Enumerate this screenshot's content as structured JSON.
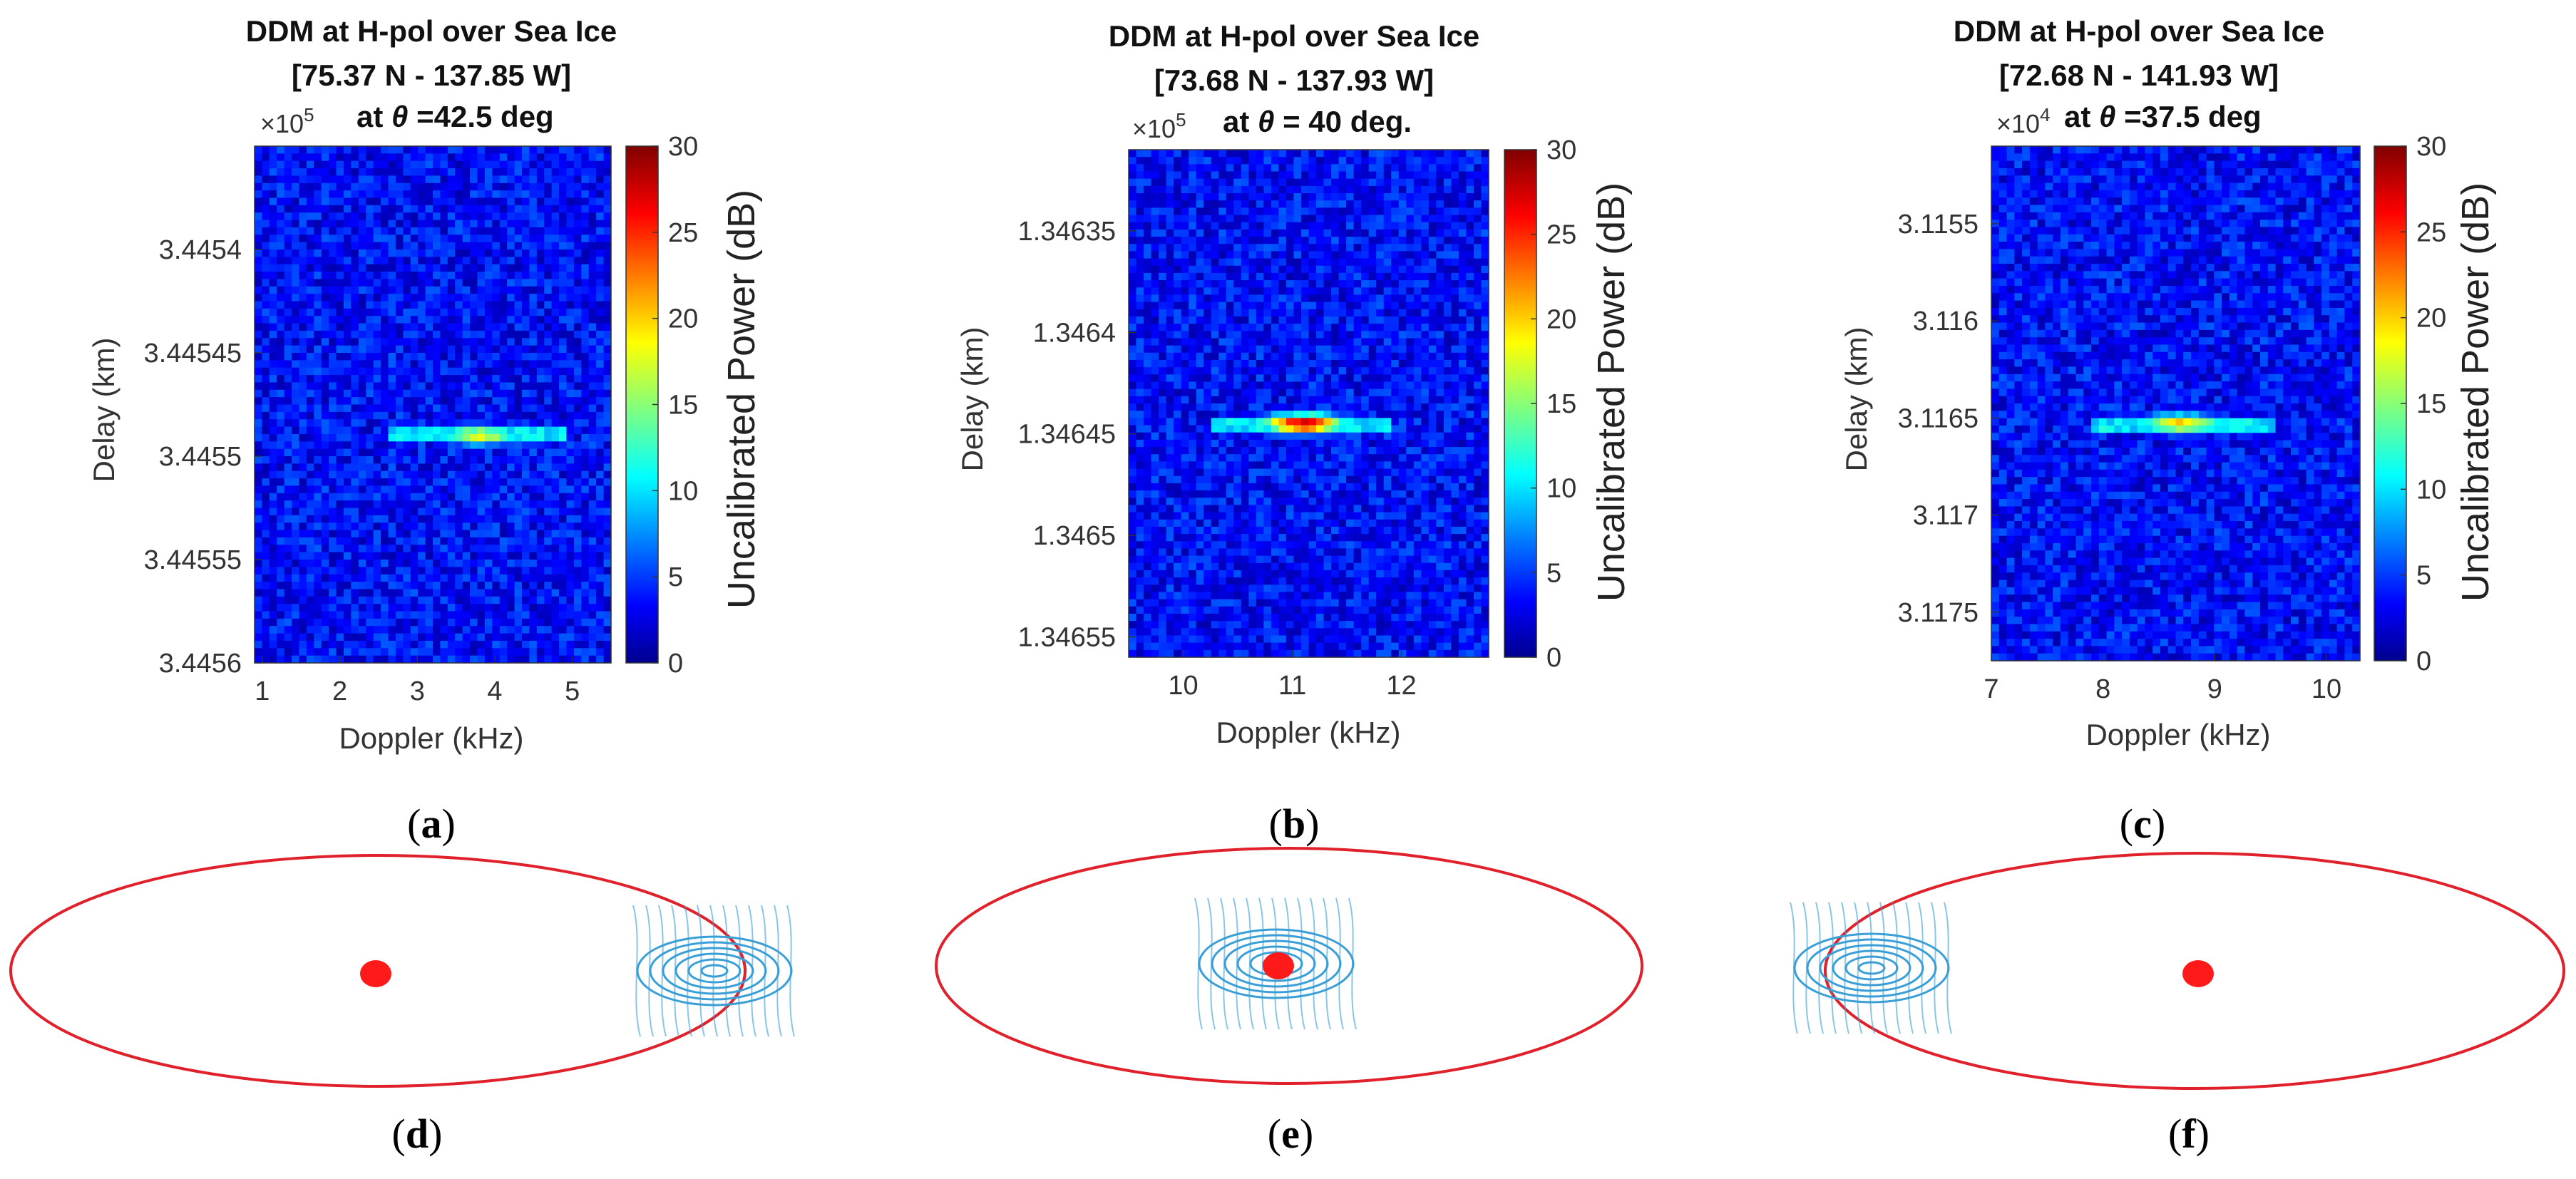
{
  "chart_data": [
    {
      "type": "heatmap",
      "panel": "(a)",
      "title_lines": [
        "DDM at H-pol over Sea Ice",
        "[75.37 N - 137.85 W]"
      ],
      "angle_prefix": "at ",
      "angle_symbol": "θ",
      "angle_value": " =42.5 deg",
      "exponent_base": "×10",
      "exponent_power": "5",
      "xlabel": "Doppler (kHz)",
      "ylabel": "Delay (km)",
      "xlim": [
        0.9,
        5.5
      ],
      "xticks": [
        1,
        2,
        3,
        4,
        5
      ],
      "ylim": [
        3.44535,
        3.4456
      ],
      "yticks": [
        3.4454,
        3.44545,
        3.4455,
        3.44555,
        3.4456
      ],
      "ytick_labels": [
        "3.4454",
        "3.44545",
        "3.4455",
        "3.44555",
        "3.4456"
      ],
      "peak": {
        "doppler": 3.8,
        "delay": 3.44549,
        "power_db": 17
      },
      "colorbar": {
        "label": "Uncalibrated Power (dB)",
        "range": [
          0,
          30
        ],
        "ticks": [
          0,
          5,
          10,
          15,
          20,
          25,
          30
        ]
      }
    },
    {
      "type": "heatmap",
      "panel": "(b)",
      "title_lines": [
        "DDM at H-pol over Sea Ice",
        "[73.68 N - 137.93 W]"
      ],
      "angle_prefix": "at ",
      "angle_symbol": "θ",
      "angle_value": " = 40 deg.",
      "exponent_base": "×10",
      "exponent_power": "5",
      "xlabel": "Doppler (kHz)",
      "ylabel": "Delay (km)",
      "xlim": [
        9.5,
        12.8
      ],
      "xticks": [
        10,
        11,
        12
      ],
      "ylim": [
        1.34631,
        1.34656
      ],
      "yticks": [
        1.34635,
        1.3464,
        1.34645,
        1.3465,
        1.34655
      ],
      "ytick_labels": [
        "1.34635",
        "1.3464",
        "1.34645",
        "1.3465",
        "1.34655"
      ],
      "peak": {
        "doppler": 11.1,
        "delay": 1.346445,
        "power_db": 27
      },
      "colorbar": {
        "label": "Uncalibrated Power (dB)",
        "range": [
          0,
          30
        ],
        "ticks": [
          0,
          5,
          10,
          15,
          20,
          25,
          30
        ]
      }
    },
    {
      "type": "heatmap",
      "panel": "(c)",
      "title_lines": [
        "DDM at H-pol over Sea Ice",
        "[72.68 N - 141.93 W]"
      ],
      "angle_prefix": "at ",
      "angle_symbol": "θ",
      "angle_value": " =37.5 deg",
      "exponent_base": "×10",
      "exponent_power": "4",
      "xlabel": "Doppler (kHz)",
      "ylabel": "Delay (km)",
      "xlim": [
        7,
        10.3
      ],
      "xticks": [
        7,
        8,
        9,
        10
      ],
      "ylim": [
        3.1151,
        3.11775
      ],
      "yticks": [
        3.1155,
        3.116,
        3.1165,
        3.117,
        3.1175
      ],
      "ytick_labels": [
        "3.1155",
        "3.116",
        "3.1165",
        "3.117",
        "3.1175"
      ],
      "peak": {
        "doppler": 8.7,
        "delay": 3.11653,
        "power_db": 19
      },
      "colorbar": {
        "label": "Uncalibrated Power (dB)",
        "range": [
          0,
          30
        ],
        "ticks": [
          0,
          5,
          10,
          15,
          20,
          25,
          30
        ]
      }
    }
  ],
  "schematics": [
    {
      "panel": "(d)",
      "specular_point_position": "left of center",
      "ice_pattern_position": "right, overlapping ellipse edge"
    },
    {
      "panel": "(e)",
      "specular_point_position": "center",
      "ice_pattern_position": "center"
    },
    {
      "panel": "(f)",
      "specular_point_position": "right of center",
      "ice_pattern_position": "left, overlapping ellipse edge"
    }
  ],
  "captions": {
    "a": {
      "open": "(",
      "letter": "a",
      "close": ")"
    },
    "b": {
      "open": "(",
      "letter": "b",
      "close": ")"
    },
    "c": {
      "open": "(",
      "letter": "c",
      "close": ")"
    },
    "d": {
      "open": "(",
      "letter": "d",
      "close": ")"
    },
    "e": {
      "open": "(",
      "letter": "e",
      "close": ")"
    },
    "f": {
      "open": "(",
      "letter": "f",
      "close": ")"
    }
  },
  "colors": {
    "ellipse": "#e0202a",
    "specular_point": "#ff1a1a",
    "ice_pattern": "#3a9fd6",
    "colormap": [
      "#00008f",
      "#0000ff",
      "#00ffff",
      "#ffff00",
      "#ff0000",
      "#800000"
    ]
  }
}
